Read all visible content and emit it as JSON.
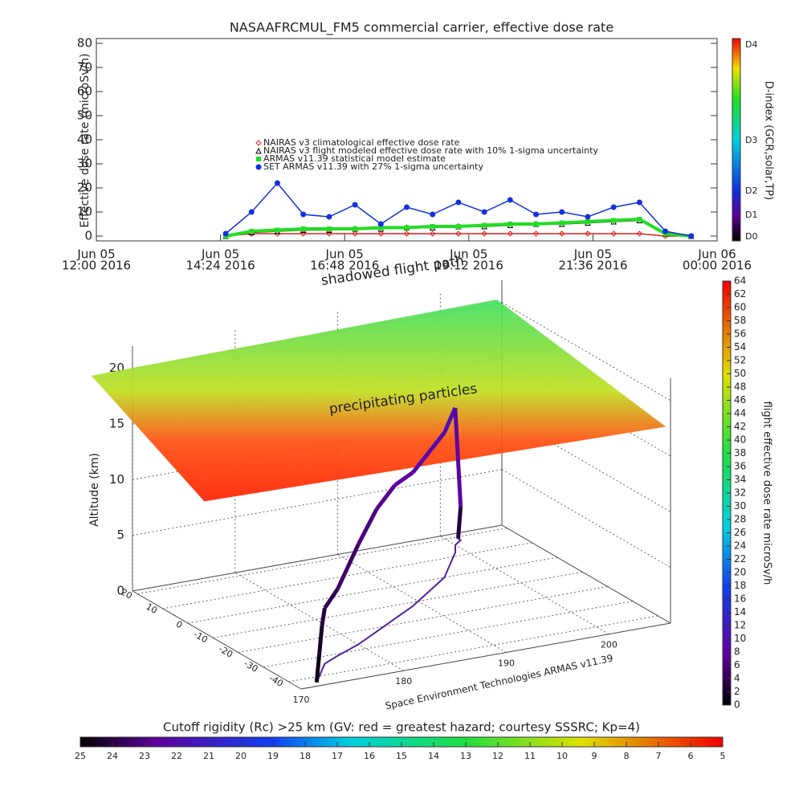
{
  "chart_data": [
    {
      "type": "line",
      "title": "NASAAFRCMUL_FM5 commercial carrier, effective dose rate",
      "y_label": "Effective dose rate (microSv/h)",
      "xlim": [
        "2016-06-05T12:00",
        "2016-06-06T00:00"
      ],
      "xticks": [
        {
          "value": "2016-06-05T12:00",
          "label": [
            "Jun 05",
            "12:00 2016"
          ]
        },
        {
          "value": "2016-06-05T14:24",
          "label": [
            "Jun 05",
            "14:24 2016"
          ]
        },
        {
          "value": "2016-06-05T16:48",
          "label": [
            "Jun 05",
            "16:48 2016"
          ]
        },
        {
          "value": "2016-06-05T19:12",
          "label": [
            "Jun 05",
            "19:12 2016"
          ]
        },
        {
          "value": "2016-06-05T21:36",
          "label": [
            "Jun 05",
            "21:36 2016"
          ]
        },
        {
          "value": "2016-06-06T00:00",
          "label": [
            "Jun 06",
            "00:00 2016"
          ]
        }
      ],
      "ylim": [
        -2,
        82
      ],
      "yticks": [
        0,
        10,
        20,
        30,
        40,
        50,
        60,
        70,
        80
      ],
      "x": [
        "2016-06-05T14:30",
        "2016-06-05T15:00",
        "2016-06-05T15:30",
        "2016-06-05T16:00",
        "2016-06-05T16:30",
        "2016-06-05T17:00",
        "2016-06-05T17:30",
        "2016-06-05T18:00",
        "2016-06-05T18:30",
        "2016-06-05T19:00",
        "2016-06-05T19:30",
        "2016-06-05T20:00",
        "2016-06-05T20:30",
        "2016-06-05T21:00",
        "2016-06-05T21:30",
        "2016-06-05T22:00",
        "2016-06-05T22:30",
        "2016-06-05T23:00",
        "2016-06-05T23:30"
      ],
      "series": [
        {
          "name": "NAIRAS v3 climatological effective dose rate",
          "color": "#e02020",
          "marker": "diamond",
          "values": [
            0,
            1,
            1,
            1,
            1,
            1,
            1,
            1,
            1,
            1,
            1,
            1,
            1,
            1,
            1,
            1,
            1,
            0,
            0
          ]
        },
        {
          "name": "NAIRAS v3 flight modeled effective dose rate with 10% 1-sigma uncertainty",
          "color": "#000000",
          "marker": "triangle",
          "values": [
            0,
            1.5,
            2,
            2.5,
            2.5,
            3,
            3,
            3.5,
            3.5,
            4,
            4,
            4.5,
            5,
            5,
            5.5,
            6,
            6.5,
            1,
            0
          ]
        },
        {
          "name": "ARMAS v11.39 statistical model estimate",
          "color": "#22dd22",
          "marker": "star",
          "values": [
            0,
            2,
            2.5,
            3,
            3,
            3,
            3.5,
            3.5,
            4,
            4,
            4.5,
            5,
            5,
            5.5,
            6,
            6.5,
            7,
            1,
            0
          ]
        },
        {
          "name": "SET ARMAS v11.39 with 27% 1-sigma uncertainty",
          "color": "#1530e0",
          "marker": "circle",
          "values": [
            1,
            10,
            22,
            9,
            8,
            13,
            5,
            12,
            9,
            14,
            10,
            15,
            9,
            10,
            8,
            12,
            14,
            2,
            0
          ]
        }
      ],
      "colorbar": {
        "label": "D-index (GCR,solar,TP)",
        "ticks": [
          "D0",
          "D1",
          "D2",
          "D3",
          "D4"
        ]
      }
    },
    {
      "type": "flight3d",
      "z_label": "Altitude (km)",
      "annotations": [
        "shadowed flight path",
        "precipitating particles",
        "Space Environment Technologies ARMAS v11.39"
      ],
      "xlim": [
        170,
        206
      ],
      "xticks": [
        170,
        180,
        190,
        200
      ],
      "ylim": [
        -45,
        22
      ],
      "yticks": [
        20,
        10,
        0,
        -10,
        -20,
        -30,
        -40
      ],
      "zlim": [
        0,
        22
      ],
      "zticks": [
        0,
        5,
        10,
        15,
        20
      ],
      "lon": [
        172,
        173,
        174,
        175,
        177,
        180,
        183,
        186,
        189,
        192,
        195,
        197,
        199,
        200,
        201,
        201
      ],
      "lat": [
        -43,
        -40,
        -37,
        -34,
        -31,
        -27,
        -22,
        -17,
        -12,
        -6,
        0,
        6,
        12,
        16,
        18,
        19
      ],
      "alt": [
        0,
        2,
        4,
        5,
        6,
        9,
        11,
        12,
        12,
        12.5,
        13,
        13,
        13,
        12,
        3,
        0
      ],
      "dose": [
        1,
        2,
        3,
        4,
        5,
        6,
        7,
        8,
        9,
        9,
        10,
        10,
        9,
        8,
        3,
        1
      ],
      "colorbar": {
        "label": "flight effective dose rate microSv/h",
        "lim": [
          0,
          64
        ],
        "ticks": [
          0,
          2,
          4,
          6,
          8,
          10,
          12,
          14,
          16,
          18,
          20,
          22,
          24,
          26,
          28,
          30,
          32,
          34,
          36,
          38,
          40,
          42,
          44,
          46,
          48,
          50,
          52,
          54,
          56,
          58,
          60,
          62,
          64
        ]
      },
      "rigidity_bar": {
        "label": "Cutoff rigidity (Rc) >25 km (GV: red = greatest hazard; courtesy SSSRC; Kp=4)",
        "lim": [
          25,
          5
        ],
        "ticks": [
          25,
          24,
          23,
          22,
          21,
          20,
          19,
          18,
          17,
          16,
          15,
          14,
          13,
          12,
          11,
          10,
          9,
          8,
          7,
          6,
          5
        ]
      }
    }
  ]
}
